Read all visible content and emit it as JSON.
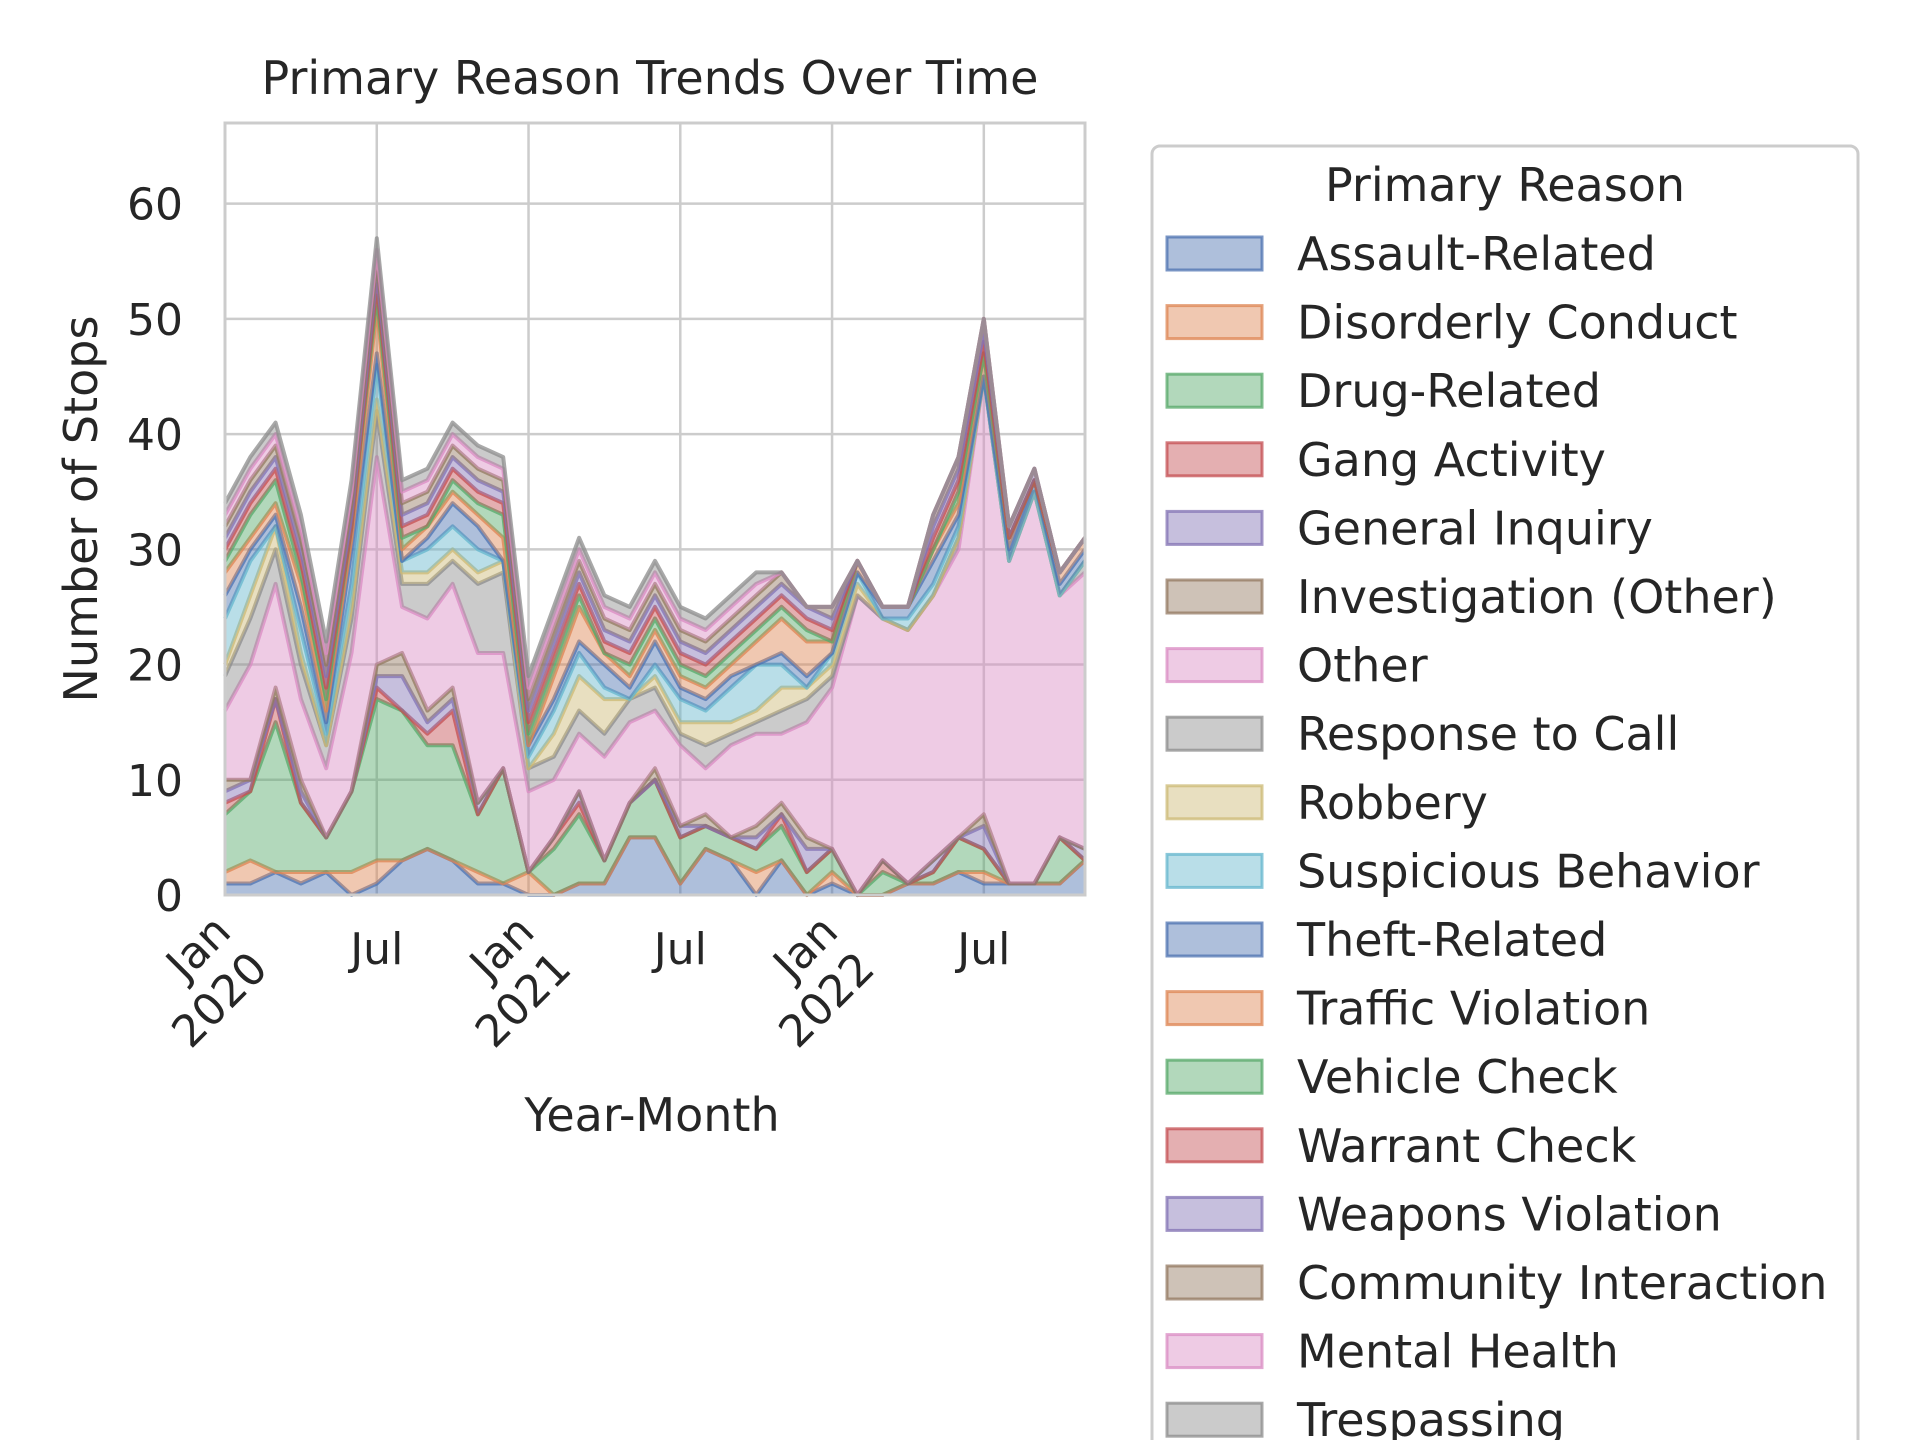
{
  "chart_data": {
    "type": "area",
    "title": "Primary Reason Trends Over Time",
    "xlabel": "Year-Month",
    "ylabel": "Number of Stops",
    "x_ticks": [
      {
        "month_index": 0,
        "label": "Jan",
        "sublabel": "2020"
      },
      {
        "month_index": 6,
        "label": "Jul",
        "sublabel": ""
      },
      {
        "month_index": 12,
        "label": "Jan",
        "sublabel": "2021"
      },
      {
        "month_index": 18,
        "label": "Jul",
        "sublabel": ""
      },
      {
        "month_index": 24,
        "label": "Jan",
        "sublabel": "2022"
      },
      {
        "month_index": 30,
        "label": "Jul",
        "sublabel": ""
      }
    ],
    "y_ticks": [
      0,
      10,
      20,
      30,
      40,
      50,
      60
    ],
    "ylim": [
      0,
      67
    ],
    "xlim": [
      "2020-01",
      "2022-11"
    ],
    "grid": true,
    "months": [
      "2020-01",
      "2020-02",
      "2020-03",
      "2020-04",
      "2020-05",
      "2020-06",
      "2020-07",
      "2020-08",
      "2020-09",
      "2020-10",
      "2020-11",
      "2020-12",
      "2021-01",
      "2021-02",
      "2021-03",
      "2021-04",
      "2021-05",
      "2021-06",
      "2021-07",
      "2021-08",
      "2021-09",
      "2021-10",
      "2021-11",
      "2021-12",
      "2022-01",
      "2022-02",
      "2022-03",
      "2022-04",
      "2022-05",
      "2022-06",
      "2022-07",
      "2022-08",
      "2022-09",
      "2022-10",
      "2022-11"
    ],
    "legend": {
      "title": "Primary Reason",
      "placement": "outside-right"
    },
    "series": [
      {
        "name": "Assault-Related",
        "color": "#4c72b0",
        "values": [
          1,
          1,
          2,
          1,
          2,
          0,
          1,
          3,
          4,
          3,
          1,
          1,
          0,
          0,
          1,
          1,
          5,
          5,
          1,
          4,
          3,
          0,
          3,
          0,
          1,
          0,
          0,
          1,
          1,
          2,
          1,
          1,
          1,
          1,
          3
        ]
      },
      {
        "name": "Disorderly Conduct",
        "color": "#dd8452",
        "values": [
          1,
          2,
          0,
          1,
          0,
          2,
          2,
          0,
          0,
          0,
          1,
          0,
          2,
          0,
          0,
          0,
          0,
          0,
          0,
          0,
          0,
          2,
          0,
          0,
          1,
          0,
          0,
          0,
          0,
          0,
          1,
          0,
          0,
          0,
          0
        ]
      },
      {
        "name": "Drug-Related",
        "color": "#55a868",
        "values": [
          5,
          6,
          13,
          6,
          3,
          7,
          14,
          13,
          9,
          10,
          5,
          10,
          0,
          4,
          6,
          2,
          3,
          5,
          4,
          2,
          2,
          2,
          3,
          2,
          2,
          0,
          2,
          0,
          1,
          3,
          2,
          0,
          0,
          4,
          0
        ]
      },
      {
        "name": "Gang Activity",
        "color": "#c44e52",
        "values": [
          1,
          0,
          2,
          0,
          0,
          0,
          1,
          0,
          1,
          3,
          0,
          0,
          0,
          1,
          1,
          0,
          0,
          0,
          0,
          0,
          0,
          0,
          1,
          0,
          0,
          0,
          1,
          0,
          0,
          0,
          0,
          0,
          0,
          0,
          0
        ]
      },
      {
        "name": "General Inquiry",
        "color": "#8172b3",
        "values": [
          1,
          1,
          0,
          1,
          0,
          0,
          1,
          3,
          1,
          1,
          1,
          0,
          0,
          0,
          1,
          0,
          0,
          0,
          1,
          0,
          0,
          1,
          0,
          2,
          0,
          0,
          0,
          0,
          1,
          0,
          2,
          0,
          0,
          0,
          1
        ]
      },
      {
        "name": "Investigation (Other)",
        "color": "#937860",
        "values": [
          1,
          0,
          1,
          1,
          0,
          0,
          1,
          2,
          1,
          1,
          0,
          0,
          0,
          0,
          0,
          0,
          0,
          1,
          0,
          1,
          0,
          1,
          1,
          1,
          0,
          0,
          0,
          0,
          0,
          0,
          1,
          0,
          0,
          0,
          0
        ]
      },
      {
        "name": "Other",
        "color": "#da8bc3",
        "values": [
          6,
          10,
          9,
          7,
          6,
          12,
          18,
          4,
          8,
          9,
          13,
          10,
          7,
          5,
          5,
          9,
          7,
          5,
          7,
          4,
          8,
          8,
          6,
          10,
          14,
          26,
          21,
          22,
          23,
          25,
          38,
          28,
          34,
          21,
          24
        ]
      },
      {
        "name": "Response to Call",
        "color": "#8c8c8c",
        "values": [
          3,
          4,
          3,
          3,
          2,
          3,
          4,
          2,
          3,
          2,
          6,
          7,
          2,
          2,
          2,
          2,
          2,
          2,
          1,
          2,
          1,
          1,
          2,
          2,
          1,
          0,
          0,
          0,
          0,
          1,
          0,
          0,
          0,
          0,
          1
        ]
      },
      {
        "name": "Robbery",
        "color": "#ccb974",
        "values": [
          1,
          2,
          2,
          1,
          0,
          1,
          1,
          1,
          1,
          1,
          1,
          1,
          0,
          2,
          3,
          3,
          0,
          1,
          1,
          2,
          1,
          1,
          2,
          1,
          1,
          1,
          0,
          0,
          0,
          0,
          0,
          0,
          0,
          0,
          0
        ]
      },
      {
        "name": "Suspicious Behavior",
        "color": "#64b5cd",
        "values": [
          4,
          3,
          0,
          2,
          1,
          2,
          3,
          1,
          2,
          2,
          2,
          0,
          1,
          2,
          2,
          1,
          0,
          1,
          2,
          1,
          3,
          4,
          2,
          0,
          1,
          1,
          0,
          1,
          1,
          1,
          0,
          0,
          0,
          0,
          0
        ]
      },
      {
        "name": "Theft-Related",
        "color": "#4c72b0",
        "values": [
          2,
          1,
          1,
          2,
          1,
          3,
          1,
          0,
          1,
          2,
          2,
          0,
          1,
          1,
          1,
          2,
          1,
          2,
          1,
          1,
          1,
          0,
          1,
          1,
          0,
          0,
          1,
          1,
          2,
          1,
          0,
          1,
          1,
          1,
          1
        ]
      },
      {
        "name": "Traffic Violation",
        "color": "#dd8452",
        "values": [
          2,
          1,
          1,
          2,
          1,
          1,
          4,
          1,
          1,
          1,
          1,
          2,
          0,
          2,
          3,
          1,
          1,
          1,
          1,
          1,
          1,
          2,
          3,
          3,
          1,
          1,
          0,
          0,
          1,
          1,
          2,
          1,
          0,
          1,
          1
        ]
      },
      {
        "name": "Vehicle Check",
        "color": "#55a868",
        "values": [
          1,
          2,
          2,
          1,
          1,
          1,
          1,
          1,
          0,
          1,
          1,
          2,
          1,
          1,
          1,
          0,
          1,
          1,
          1,
          1,
          1,
          1,
          1,
          1,
          0,
          0,
          0,
          0,
          0,
          1,
          0,
          0,
          0,
          0,
          0
        ]
      },
      {
        "name": "Warrant Check",
        "color": "#c44e52",
        "values": [
          1,
          1,
          1,
          1,
          1,
          0,
          1,
          1,
          1,
          1,
          1,
          1,
          1,
          1,
          1,
          1,
          1,
          1,
          1,
          1,
          1,
          1,
          1,
          1,
          1,
          0,
          0,
          0,
          1,
          1,
          1,
          0,
          0,
          0,
          0
        ]
      },
      {
        "name": "Weapons Violation",
        "color": "#8172b3",
        "values": [
          1,
          1,
          1,
          1,
          1,
          1,
          1,
          1,
          1,
          1,
          1,
          1,
          1,
          1,
          1,
          1,
          1,
          1,
          1,
          1,
          1,
          1,
          1,
          1,
          1,
          0,
          0,
          0,
          1,
          1,
          1,
          1,
          1,
          0,
          0
        ]
      },
      {
        "name": "Community Interaction",
        "color": "#937860",
        "values": [
          1,
          1,
          1,
          1,
          1,
          1,
          1,
          1,
          1,
          1,
          1,
          1,
          1,
          1,
          1,
          1,
          1,
          1,
          1,
          1,
          1,
          1,
          1,
          0,
          1,
          0,
          0,
          0,
          1,
          1,
          1,
          0,
          0,
          0,
          0
        ]
      },
      {
        "name": "Mental Health",
        "color": "#da8bc3",
        "values": [
          1,
          1,
          1,
          1,
          1,
          1,
          1,
          1,
          1,
          1,
          1,
          1,
          1,
          1,
          1,
          1,
          1,
          1,
          1,
          1,
          1,
          1,
          0,
          0,
          0,
          0,
          0,
          0,
          0,
          0,
          0,
          0,
          0,
          0,
          0
        ]
      },
      {
        "name": "Trespassing",
        "color": "#8c8c8c",
        "values": [
          1,
          1,
          1,
          1,
          1,
          1,
          1,
          1,
          1,
          1,
          1,
          1,
          1,
          1,
          1,
          1,
          1,
          1,
          1,
          1,
          1,
          1,
          0,
          0,
          0,
          0,
          0,
          0,
          0,
          0,
          0,
          0,
          0,
          0,
          0
        ]
      }
    ]
  }
}
